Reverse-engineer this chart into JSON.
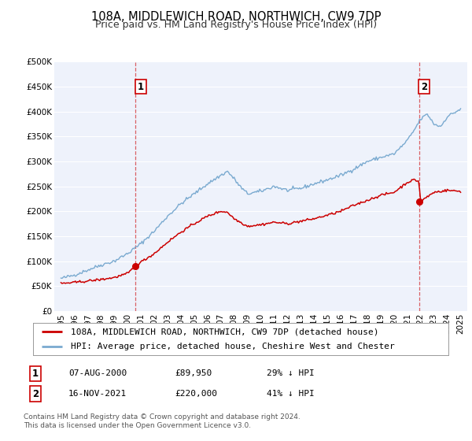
{
  "title": "108A, MIDDLEWICH ROAD, NORTHWICH, CW9 7DP",
  "subtitle": "Price paid vs. HM Land Registry's House Price Index (HPI)",
  "ylim": [
    0,
    500000
  ],
  "yticks": [
    0,
    50000,
    100000,
    150000,
    200000,
    250000,
    300000,
    350000,
    400000,
    450000,
    500000
  ],
  "ytick_labels": [
    "£0",
    "£50K",
    "£100K",
    "£150K",
    "£200K",
    "£250K",
    "£300K",
    "£350K",
    "£400K",
    "£450K",
    "£500K"
  ],
  "xlim_start": 1994.5,
  "xlim_end": 2025.5,
  "xticks": [
    1995,
    1996,
    1997,
    1998,
    1999,
    2000,
    2001,
    2002,
    2003,
    2004,
    2005,
    2006,
    2007,
    2008,
    2009,
    2010,
    2011,
    2012,
    2013,
    2014,
    2015,
    2016,
    2017,
    2018,
    2019,
    2020,
    2021,
    2022,
    2023,
    2024,
    2025
  ],
  "plot_bg_color": "#eef2fb",
  "grid_color": "#ffffff",
  "red_line_color": "#cc0000",
  "blue_line_color": "#7aaad0",
  "marker1_date": 2000.6,
  "marker1_value": 89950,
  "marker2_date": 2021.87,
  "marker2_value": 220000,
  "vline1_x": 2000.6,
  "vline2_x": 2021.87,
  "legend_line1": "108A, MIDDLEWICH ROAD, NORTHWICH, CW9 7DP (detached house)",
  "legend_line2": "HPI: Average price, detached house, Cheshire West and Chester",
  "annotation1_date": "07-AUG-2000",
  "annotation1_price": "£89,950",
  "annotation1_hpi": "29% ↓ HPI",
  "annotation2_date": "16-NOV-2021",
  "annotation2_price": "£220,000",
  "annotation2_hpi": "41% ↓ HPI",
  "footer": "Contains HM Land Registry data © Crown copyright and database right 2024.\nThis data is licensed under the Open Government Licence v3.0.",
  "title_fontsize": 10.5,
  "subtitle_fontsize": 9,
  "tick_fontsize": 7.5,
  "legend_fontsize": 8,
  "annotation_fontsize": 8,
  "footer_fontsize": 6.5
}
